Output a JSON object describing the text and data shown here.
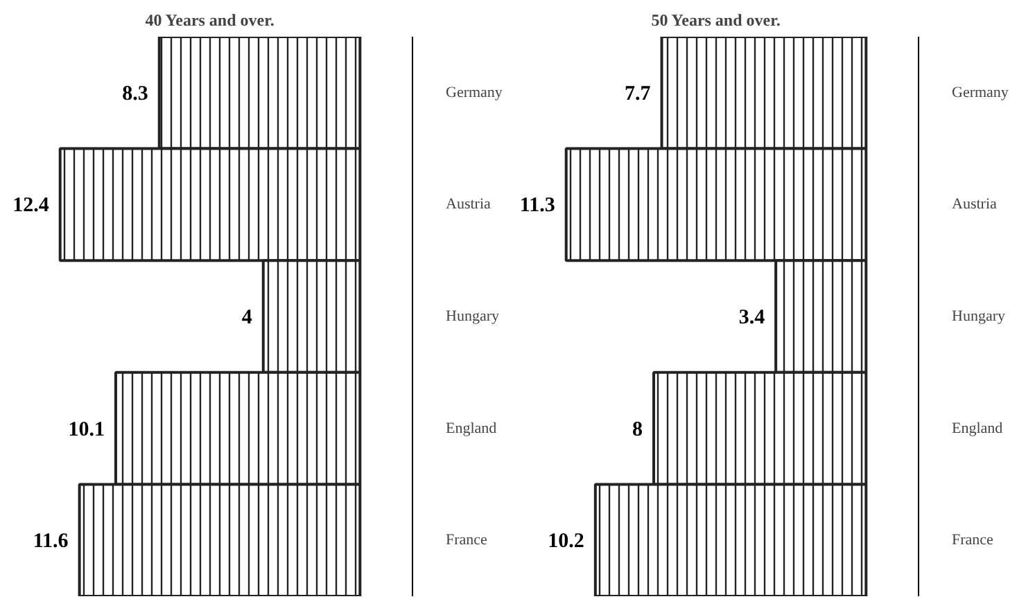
{
  "chart_data": [
    {
      "type": "bar",
      "orientation": "horizontal",
      "title": "40 Years and over.",
      "categories": [
        "Germany",
        "Austria",
        "Hungary",
        "England",
        "France"
      ],
      "values": [
        8.3,
        12.4,
        4,
        10.1,
        11.6
      ],
      "color": "#222222",
      "tick_labels": "y",
      "data_labels": true
    },
    {
      "type": "bar",
      "orientation": "horizontal",
      "title": "50 Years and over.",
      "categories": [
        "Germany",
        "Austria",
        "Hungary",
        "England",
        "France"
      ],
      "values": [
        7.7,
        11.3,
        3.4,
        8,
        10.2
      ],
      "color": "#222222",
      "tick_labels": "y",
      "data_labels": true
    }
  ]
}
